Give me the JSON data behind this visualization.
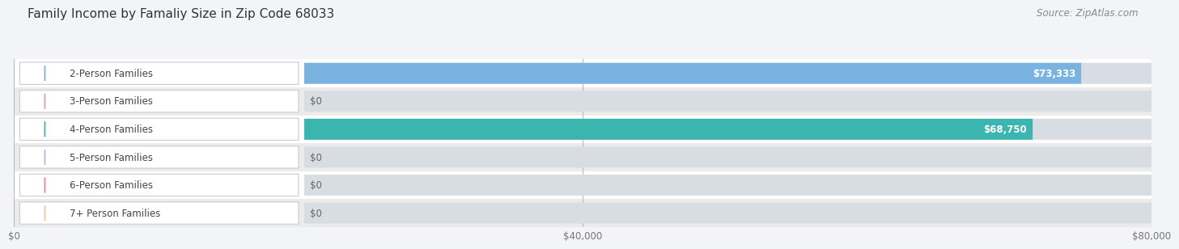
{
  "title": "Family Income by Famaliy Size in Zip Code 68033",
  "source": "Source: ZipAtlas.com",
  "categories": [
    "2-Person Families",
    "3-Person Families",
    "4-Person Families",
    "5-Person Families",
    "6-Person Families",
    "7+ Person Families"
  ],
  "values": [
    73333,
    0,
    68750,
    0,
    0,
    0
  ],
  "bar_colors": [
    "#7ab3e0",
    "#c9a0c8",
    "#3ab5b0",
    "#a8b8e8",
    "#f08090",
    "#f5c88a"
  ],
  "value_labels": [
    "$73,333",
    "$0",
    "$68,750",
    "$0",
    "$0",
    "$0"
  ],
  "xlim": [
    0,
    80000
  ],
  "xticks": [
    0,
    40000,
    80000
  ],
  "xticklabels": [
    "$0",
    "$40,000",
    "$80,000"
  ],
  "background_color": "#f2f4f7",
  "row_colors": [
    "#ffffff",
    "#ebebeb"
  ],
  "title_fontsize": 11,
  "source_fontsize": 8.5,
  "label_fontsize": 8.5,
  "value_fontsize": 8.5
}
